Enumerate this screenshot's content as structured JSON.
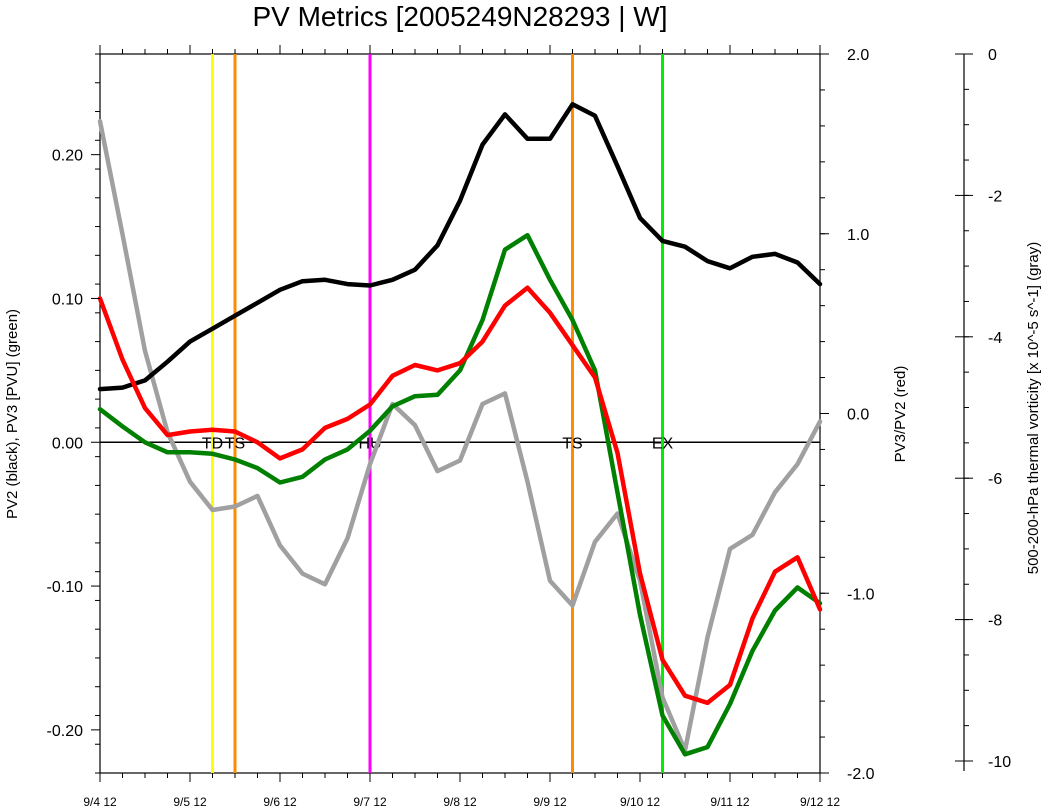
{
  "chart_data": {
    "type": "line",
    "title": "PV Metrics [2005249N28293 | W]",
    "x_ticks": [
      "9/4 12",
      "9/5 12",
      "9/6 12",
      "9/7 12",
      "9/8 12",
      "9/9 12",
      "9/10 12",
      "9/11 12",
      "9/12 12"
    ],
    "x_unit": "days since 9/4 12",
    "xlim": [
      0,
      8
    ],
    "left_axis": {
      "label": "PV2 (black), PV3 [PVU] (green)",
      "ylim": [
        -0.23,
        0.27
      ],
      "ticks": [
        0.2,
        0.1,
        0.0,
        -0.1,
        -0.2
      ],
      "tick_labels": [
        "0.20",
        "0.10",
        "0.00",
        "-0.10",
        "-0.20"
      ]
    },
    "right_axis": {
      "label": "PV3/PV2 (red)",
      "ylim": [
        -2.0,
        2.0
      ],
      "ticks": [
        2.0,
        1.0,
        0.0,
        -1.0,
        -2.0
      ],
      "tick_labels": [
        "2.0",
        "1.0",
        "0.0",
        "-1.0",
        "-2.0"
      ]
    },
    "far_axis": {
      "label": "500-200-hPa thermal vorticity [x 10^-5 s^-1] (gray)",
      "ylim": [
        -10,
        0
      ],
      "ticks": [
        0,
        -2,
        -4,
        -6,
        -8,
        -10
      ],
      "tick_labels": [
        "0",
        "-2",
        "-4",
        "-6",
        "-8",
        "-10"
      ]
    },
    "zero_line": 0.0,
    "series": [
      {
        "name": "PV2",
        "axis": "left",
        "color": "#000000",
        "x": [
          0,
          0.25,
          0.5,
          0.75,
          1,
          1.25,
          1.5,
          1.75,
          2,
          2.25,
          2.5,
          2.75,
          3,
          3.25,
          3.5,
          3.75,
          4,
          4.25,
          4.5,
          4.75,
          5,
          5.25,
          5.5,
          5.75,
          6,
          6.25,
          6.5,
          6.75,
          7,
          7.25,
          7.5,
          7.75,
          8
        ],
        "values": [
          0.037,
          0.038,
          0.043,
          0.056,
          0.07,
          0.079,
          0.088,
          0.097,
          0.106,
          0.112,
          0.113,
          0.11,
          0.109,
          0.113,
          0.12,
          0.137,
          0.168,
          0.207,
          0.228,
          0.211,
          0.211,
          0.235,
          0.227,
          0.192,
          0.156,
          0.14,
          0.136,
          0.126,
          0.121,
          0.129,
          0.131,
          0.125,
          0.11
        ]
      },
      {
        "name": "PV3",
        "axis": "left",
        "color": "#008000",
        "x": [
          0,
          0.25,
          0.5,
          0.75,
          1,
          1.25,
          1.5,
          1.75,
          2,
          2.25,
          2.5,
          2.75,
          3,
          3.25,
          3.5,
          3.75,
          4,
          4.25,
          4.5,
          4.75,
          5,
          5.25,
          5.5,
          5.75,
          6,
          6.25,
          6.5,
          6.75,
          7,
          7.25,
          7.5,
          7.75,
          8
        ],
        "values": [
          0.023,
          0.011,
          0.0,
          -0.007,
          -0.007,
          -0.008,
          -0.012,
          -0.018,
          -0.028,
          -0.024,
          -0.012,
          -0.005,
          0.008,
          0.025,
          0.032,
          0.033,
          0.05,
          0.085,
          0.134,
          0.144,
          0.113,
          0.085,
          0.05,
          -0.035,
          -0.12,
          -0.19,
          -0.217,
          -0.212,
          -0.182,
          -0.145,
          -0.117,
          -0.101,
          -0.112
        ]
      },
      {
        "name": "PV3/PV2",
        "axis": "right",
        "color": "#ff0000",
        "x": [
          0,
          0.25,
          0.5,
          0.75,
          1,
          1.25,
          1.5,
          1.75,
          2,
          2.25,
          2.5,
          2.75,
          3,
          3.25,
          3.5,
          3.75,
          4,
          4.25,
          4.5,
          4.75,
          5,
          5.25,
          5.5,
          5.75,
          6,
          6.25,
          6.5,
          6.75,
          7,
          7.25,
          7.5,
          7.75,
          8
        ],
        "values": [
          0.64,
          0.3,
          0.03,
          -0.12,
          -0.1,
          -0.09,
          -0.1,
          -0.16,
          -0.25,
          -0.2,
          -0.08,
          -0.03,
          0.05,
          0.21,
          0.27,
          0.24,
          0.28,
          0.4,
          0.6,
          0.7,
          0.56,
          0.38,
          0.2,
          -0.22,
          -0.89,
          -1.37,
          -1.57,
          -1.61,
          -1.51,
          -1.14,
          -0.88,
          -0.8,
          -1.09
        ]
      },
      {
        "name": "Thermal vorticity",
        "axis": "far",
        "color": "#a0a0a0",
        "x": [
          0,
          0.25,
          0.5,
          0.75,
          1,
          1.25,
          1.5,
          1.75,
          2,
          2.25,
          2.5,
          2.75,
          3,
          3.25,
          3.5,
          3.75,
          4,
          4.25,
          4.5,
          4.75,
          5,
          5.25,
          5.5,
          5.75,
          6,
          6.25,
          6.5,
          6.75,
          7,
          7.25,
          7.5,
          7.75,
          8
        ],
        "values": [
          -0.95,
          -2.55,
          -4.2,
          -5.35,
          -6.05,
          -6.45,
          -6.4,
          -6.25,
          -6.95,
          -7.35,
          -7.5,
          -6.85,
          -5.8,
          -4.95,
          -5.25,
          -5.9,
          -5.75,
          -4.95,
          -4.8,
          -6.05,
          -7.45,
          -7.8,
          -6.9,
          -6.5,
          -7.45,
          -9.1,
          -9.85,
          -8.25,
          -7.0,
          -6.8,
          -6.2,
          -5.8,
          -5.2
        ]
      }
    ],
    "markers": [
      {
        "x": 1.25,
        "color": "#ffff00",
        "label": "TD"
      },
      {
        "x": 1.5,
        "color": "#ff8c00",
        "label": "TS"
      },
      {
        "x": 3.0,
        "color": "#ff00ff",
        "label": "HU"
      },
      {
        "x": 5.25,
        "color": "#ff8c00",
        "label": "TS"
      },
      {
        "x": 6.25,
        "color": "#00ee00",
        "label": "EX"
      }
    ],
    "grid": false,
    "legend": "none"
  }
}
